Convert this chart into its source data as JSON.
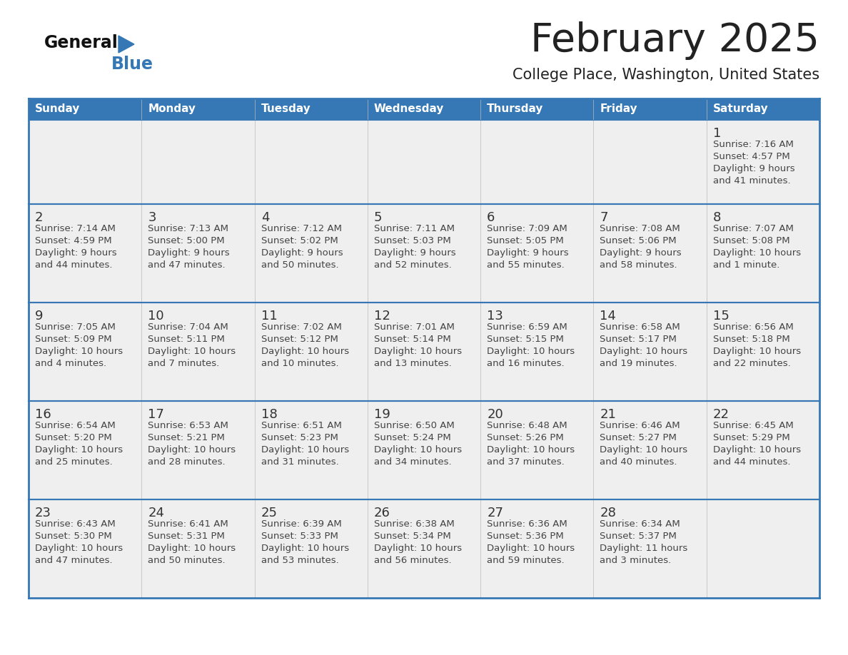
{
  "title": "February 2025",
  "subtitle": "College Place, Washington, United States",
  "header_bg": "#3578B5",
  "header_text_color": "#FFFFFF",
  "cell_bg": "#EFEFEF",
  "cell_bg_white": "#FFFFFF",
  "week_sep_color": "#3578B5",
  "cell_border_color": "#CCCCCC",
  "day_headers": [
    "Sunday",
    "Monday",
    "Tuesday",
    "Wednesday",
    "Thursday",
    "Friday",
    "Saturday"
  ],
  "title_color": "#222222",
  "subtitle_color": "#222222",
  "day_num_color": "#333333",
  "cell_text_color": "#444444",
  "logo_general_color": "#111111",
  "logo_blue_color": "#3578B5",
  "weeks": [
    [
      {
        "day": null,
        "info": null
      },
      {
        "day": null,
        "info": null
      },
      {
        "day": null,
        "info": null
      },
      {
        "day": null,
        "info": null
      },
      {
        "day": null,
        "info": null
      },
      {
        "day": null,
        "info": null
      },
      {
        "day": 1,
        "info": "Sunrise: 7:16 AM\nSunset: 4:57 PM\nDaylight: 9 hours\nand 41 minutes."
      }
    ],
    [
      {
        "day": 2,
        "info": "Sunrise: 7:14 AM\nSunset: 4:59 PM\nDaylight: 9 hours\nand 44 minutes."
      },
      {
        "day": 3,
        "info": "Sunrise: 7:13 AM\nSunset: 5:00 PM\nDaylight: 9 hours\nand 47 minutes."
      },
      {
        "day": 4,
        "info": "Sunrise: 7:12 AM\nSunset: 5:02 PM\nDaylight: 9 hours\nand 50 minutes."
      },
      {
        "day": 5,
        "info": "Sunrise: 7:11 AM\nSunset: 5:03 PM\nDaylight: 9 hours\nand 52 minutes."
      },
      {
        "day": 6,
        "info": "Sunrise: 7:09 AM\nSunset: 5:05 PM\nDaylight: 9 hours\nand 55 minutes."
      },
      {
        "day": 7,
        "info": "Sunrise: 7:08 AM\nSunset: 5:06 PM\nDaylight: 9 hours\nand 58 minutes."
      },
      {
        "day": 8,
        "info": "Sunrise: 7:07 AM\nSunset: 5:08 PM\nDaylight: 10 hours\nand 1 minute."
      }
    ],
    [
      {
        "day": 9,
        "info": "Sunrise: 7:05 AM\nSunset: 5:09 PM\nDaylight: 10 hours\nand 4 minutes."
      },
      {
        "day": 10,
        "info": "Sunrise: 7:04 AM\nSunset: 5:11 PM\nDaylight: 10 hours\nand 7 minutes."
      },
      {
        "day": 11,
        "info": "Sunrise: 7:02 AM\nSunset: 5:12 PM\nDaylight: 10 hours\nand 10 minutes."
      },
      {
        "day": 12,
        "info": "Sunrise: 7:01 AM\nSunset: 5:14 PM\nDaylight: 10 hours\nand 13 minutes."
      },
      {
        "day": 13,
        "info": "Sunrise: 6:59 AM\nSunset: 5:15 PM\nDaylight: 10 hours\nand 16 minutes."
      },
      {
        "day": 14,
        "info": "Sunrise: 6:58 AM\nSunset: 5:17 PM\nDaylight: 10 hours\nand 19 minutes."
      },
      {
        "day": 15,
        "info": "Sunrise: 6:56 AM\nSunset: 5:18 PM\nDaylight: 10 hours\nand 22 minutes."
      }
    ],
    [
      {
        "day": 16,
        "info": "Sunrise: 6:54 AM\nSunset: 5:20 PM\nDaylight: 10 hours\nand 25 minutes."
      },
      {
        "day": 17,
        "info": "Sunrise: 6:53 AM\nSunset: 5:21 PM\nDaylight: 10 hours\nand 28 minutes."
      },
      {
        "day": 18,
        "info": "Sunrise: 6:51 AM\nSunset: 5:23 PM\nDaylight: 10 hours\nand 31 minutes."
      },
      {
        "day": 19,
        "info": "Sunrise: 6:50 AM\nSunset: 5:24 PM\nDaylight: 10 hours\nand 34 minutes."
      },
      {
        "day": 20,
        "info": "Sunrise: 6:48 AM\nSunset: 5:26 PM\nDaylight: 10 hours\nand 37 minutes."
      },
      {
        "day": 21,
        "info": "Sunrise: 6:46 AM\nSunset: 5:27 PM\nDaylight: 10 hours\nand 40 minutes."
      },
      {
        "day": 22,
        "info": "Sunrise: 6:45 AM\nSunset: 5:29 PM\nDaylight: 10 hours\nand 44 minutes."
      }
    ],
    [
      {
        "day": 23,
        "info": "Sunrise: 6:43 AM\nSunset: 5:30 PM\nDaylight: 10 hours\nand 47 minutes."
      },
      {
        "day": 24,
        "info": "Sunrise: 6:41 AM\nSunset: 5:31 PM\nDaylight: 10 hours\nand 50 minutes."
      },
      {
        "day": 25,
        "info": "Sunrise: 6:39 AM\nSunset: 5:33 PM\nDaylight: 10 hours\nand 53 minutes."
      },
      {
        "day": 26,
        "info": "Sunrise: 6:38 AM\nSunset: 5:34 PM\nDaylight: 10 hours\nand 56 minutes."
      },
      {
        "day": 27,
        "info": "Sunrise: 6:36 AM\nSunset: 5:36 PM\nDaylight: 10 hours\nand 59 minutes."
      },
      {
        "day": 28,
        "info": "Sunrise: 6:34 AM\nSunset: 5:37 PM\nDaylight: 11 hours\nand 3 minutes."
      },
      {
        "day": null,
        "info": null
      }
    ]
  ]
}
